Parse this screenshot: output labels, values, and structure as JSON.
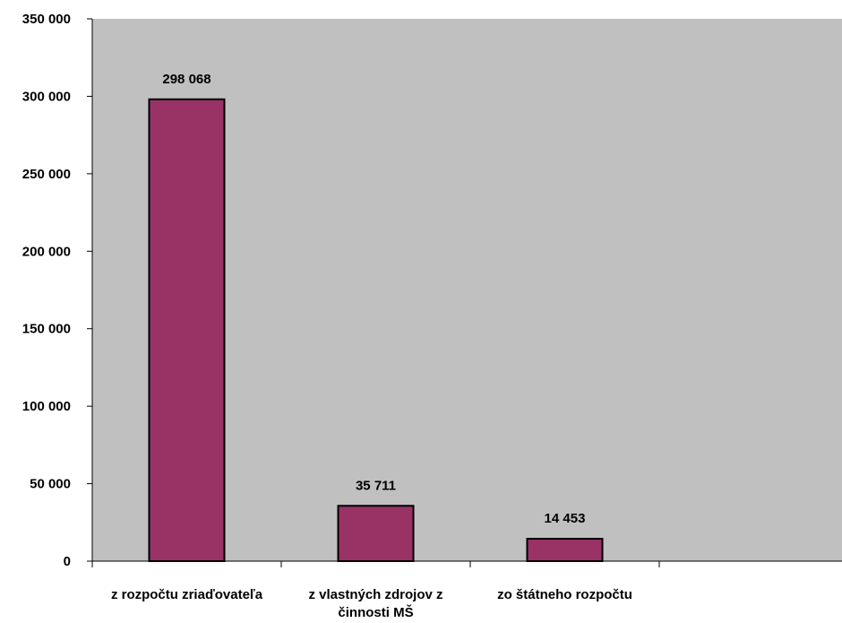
{
  "chart_data": {
    "type": "bar",
    "categories": [
      [
        "z rozpočtu zriaďovateľa"
      ],
      [
        "z vlastných zdrojov z",
        "činnosti MŠ"
      ],
      [
        "zo štátneho rozpočtu"
      ]
    ],
    "values": [
      298068,
      35711,
      14453
    ],
    "data_labels": [
      "298 068",
      "35 711",
      "14 453"
    ],
    "ylim": [
      0,
      350000
    ],
    "y_ticks": [
      0,
      50000,
      100000,
      150000,
      200000,
      250000,
      300000,
      350000
    ],
    "y_tick_labels": [
      "0",
      "50 000",
      "100 000",
      "150 000",
      "200 000",
      "250 000",
      "300 000",
      "350 000"
    ],
    "num_category_slots": 4,
    "grid": false,
    "title": "",
    "xlabel": "",
    "ylabel": "",
    "colors": {
      "bar_fill": "#993366",
      "bar_stroke": "#000000",
      "plot_background": "#c0c0c0",
      "axis": "#000000"
    }
  }
}
